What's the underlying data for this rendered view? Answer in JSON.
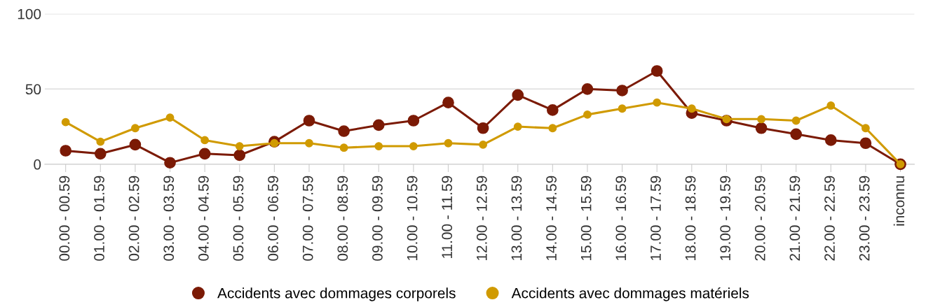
{
  "chart_data": {
    "type": "line",
    "categories": [
      "00.00 - 00.59",
      "01.00 - 01.59",
      "02.00 - 02.59",
      "03.00 - 03.59",
      "04.00 - 04.59",
      "05.00 - 05.59",
      "06.00 - 06.59",
      "07.00 - 07.59",
      "08.00 - 08.59",
      "09.00 - 09.59",
      "10.00 - 10.59",
      "11.00 - 11.59",
      "12.00 - 12.59",
      "13.00 - 13.59",
      "14.00 - 14.59",
      "15.00 - 15.59",
      "16.00 - 16.59",
      "17.00 - 17.59",
      "18.00 - 18.59",
      "19.00 - 19.59",
      "20.00 - 20.59",
      "21.00 - 21.59",
      "22.00 - 22.59",
      "23.00 - 23.59",
      "inconnu"
    ],
    "series": [
      {
        "name": "Accidents avec dommages corporels",
        "color": "#7b1a05",
        "values": [
          9,
          7,
          13,
          1,
          7,
          6,
          15,
          29,
          22,
          26,
          29,
          41,
          24,
          46,
          36,
          50,
          49,
          62,
          34,
          29,
          24,
          20,
          16,
          14,
          0
        ]
      },
      {
        "name": "Accidents avec dommages matériels",
        "color": "#d09a00",
        "values": [
          28,
          15,
          24,
          31,
          16,
          12,
          14,
          14,
          11,
          12,
          12,
          14,
          13,
          25,
          24,
          33,
          37,
          41,
          37,
          30,
          30,
          29,
          39,
          24,
          0
        ]
      }
    ],
    "ylim": [
      0,
      100
    ],
    "yticks": [
      0,
      50,
      100
    ],
    "grid": "y",
    "legend": "bottom",
    "marker": "circle",
    "line_style": "solid"
  }
}
